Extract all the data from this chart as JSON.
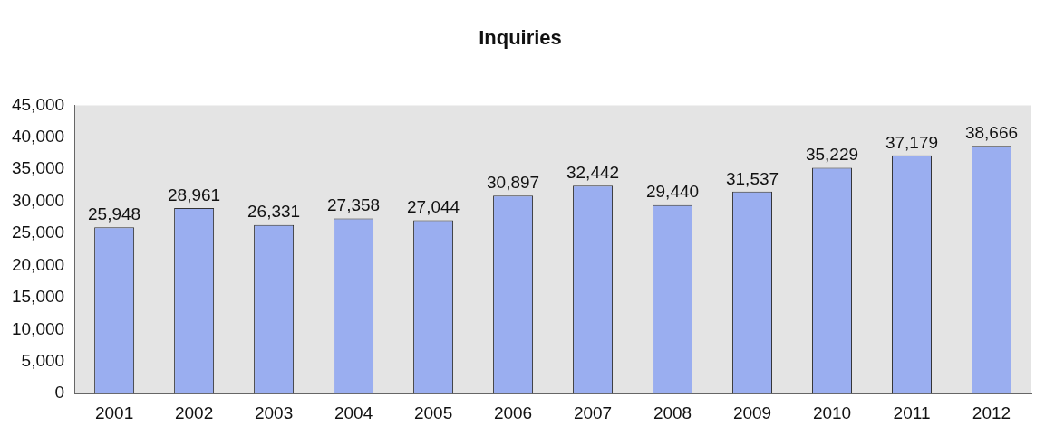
{
  "chart_data": {
    "type": "bar",
    "title": "Inquiries",
    "categories": [
      "2001",
      "2002",
      "2003",
      "2004",
      "2005",
      "2006",
      "2007",
      "2008",
      "2009",
      "2010",
      "2011",
      "2012"
    ],
    "values": [
      25948,
      28961,
      26331,
      27358,
      27044,
      30897,
      32442,
      29440,
      31537,
      35229,
      37179,
      38666
    ],
    "value_labels": [
      "25,948",
      "28,961",
      "26,331",
      "27,358",
      "27,044",
      "30,897",
      "32,442",
      "29,440",
      "31,537",
      "35,229",
      "37,179",
      "38,666"
    ],
    "color": "#9aaef0",
    "ylim": [
      0,
      45000
    ],
    "yticks": [
      0,
      {
        "value": 5000,
        "label": "5,000"
      },
      {
        "value": 10000,
        "label": "10,000"
      },
      {
        "value": 15000,
        "label": "15,000"
      },
      {
        "value": 20000,
        "label": "20,000"
      },
      {
        "value": 25000,
        "label": "25,000"
      },
      {
        "value": 30000,
        "label": "30,000"
      },
      {
        "value": 35000,
        "label": "35,000"
      },
      {
        "value": 40000,
        "label": "40,000"
      },
      {
        "value": 45000,
        "label": "45,000"
      }
    ],
    "grid": false,
    "legend": false
  }
}
